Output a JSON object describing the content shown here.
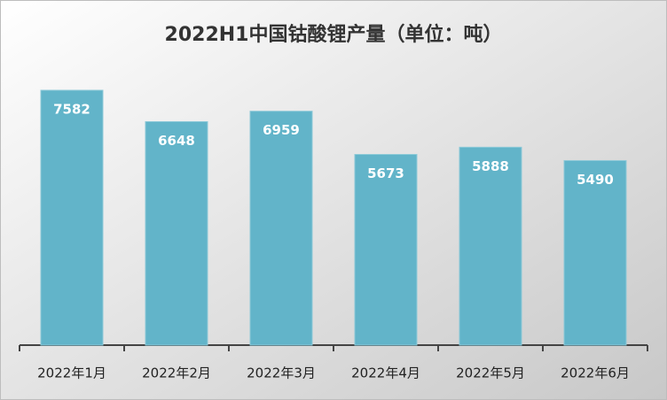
{
  "chart_data": {
    "type": "bar",
    "title": "2022H1中国钴酸锂产量（单位：吨）",
    "categories": [
      "2022年1月",
      "2022年2月",
      "2022年3月",
      "2022年4月",
      "2022年5月",
      "2022年6月"
    ],
    "values": [
      7582,
      6648,
      6959,
      5673,
      5888,
      5490
    ],
    "color": "#62b4c9"
  }
}
